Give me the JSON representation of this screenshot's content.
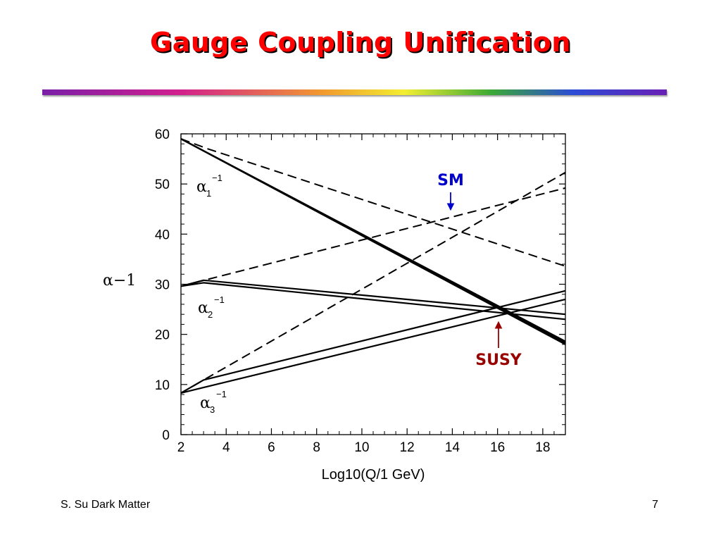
{
  "slide": {
    "title": "Gauge Coupling Unification",
    "footer_left": "S. Su Dark Matter",
    "page_number": "7"
  },
  "colors": {
    "title": "#ff0000",
    "sm_callout": "#0000cc",
    "susy_callout": "#990000"
  },
  "chart_data": {
    "type": "line",
    "xlabel": "Log10(Q/1 GeV)",
    "ylabel": "α−1",
    "xlim": [
      2,
      19
    ],
    "ylim": [
      0,
      60
    ],
    "x_ticks": [
      2,
      4,
      6,
      8,
      10,
      12,
      14,
      16,
      18
    ],
    "y_ticks": [
      0,
      10,
      20,
      30,
      40,
      50,
      60
    ],
    "grid": false,
    "curve_labels": [
      {
        "greek": "α",
        "sub": "1",
        "sup": "−1"
      },
      {
        "greek": "α",
        "sub": "2",
        "sup": "−1"
      },
      {
        "greek": "α",
        "sub": "3",
        "sup": "−1"
      }
    ],
    "series": [
      {
        "style": "dashed",
        "points": [
          [
            2,
            59
          ],
          [
            3.2,
            57
          ],
          [
            19,
            33.6
          ]
        ]
      },
      {
        "style": "dashed",
        "points": [
          [
            2,
            29.6
          ],
          [
            19,
            49.2
          ]
        ]
      },
      {
        "style": "dashed",
        "points": [
          [
            2,
            8.3
          ],
          [
            19,
            52.3
          ]
        ]
      },
      {
        "style": "solid",
        "points": [
          [
            2,
            59
          ],
          [
            19,
            18
          ]
        ]
      },
      {
        "style": "solid",
        "points": [
          [
            2,
            59
          ],
          [
            19,
            18.6
          ]
        ]
      },
      {
        "style": "solid",
        "points": [
          [
            2,
            59
          ],
          [
            19,
            18.3
          ]
        ]
      },
      {
        "style": "solid",
        "points": [
          [
            2,
            29.6
          ],
          [
            3,
            30.8
          ],
          [
            19,
            24
          ]
        ]
      },
      {
        "style": "solid",
        "points": [
          [
            2,
            29.6
          ],
          [
            3,
            30.3
          ],
          [
            19,
            23
          ]
        ]
      },
      {
        "style": "solid",
        "points": [
          [
            2,
            8.3
          ],
          [
            3,
            10.9
          ],
          [
            19,
            28.7
          ]
        ]
      },
      {
        "style": "solid",
        "points": [
          [
            2,
            8.3
          ],
          [
            3,
            9.4
          ],
          [
            19,
            27
          ]
        ]
      }
    ],
    "annotations": [
      {
        "text": "SM",
        "arrow_to": [
          14.0,
          45.6
        ],
        "direction": "down"
      },
      {
        "text": "SUSY",
        "arrow_to": [
          16.0,
          24.9
        ],
        "direction": "up"
      }
    ]
  }
}
